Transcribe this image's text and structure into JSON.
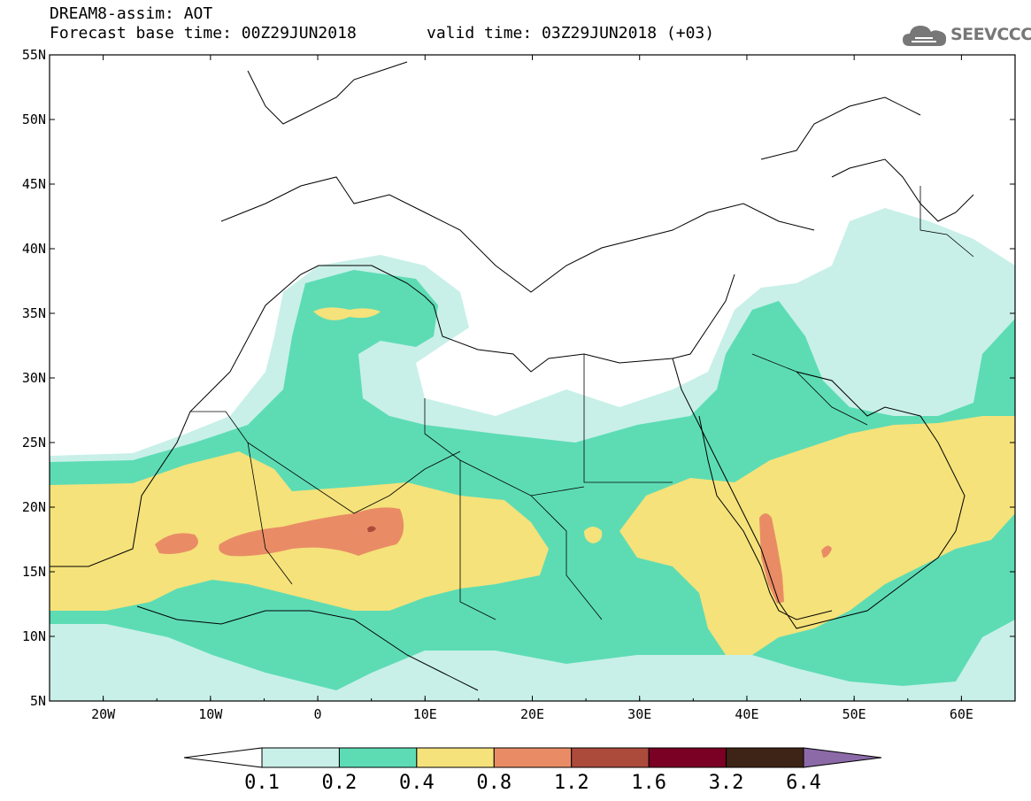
{
  "header": {
    "title": "DREAM8-assim: AOT",
    "base_time": "Forecast base time: 00Z29JUN2018",
    "valid_time": "valid time: 03Z29JUN2018 (+03)"
  },
  "logo": {
    "text": "SEEVCCC",
    "icon": "cloud-icon"
  },
  "map": {
    "lon_range": [
      -25,
      65
    ],
    "lat_range": [
      5,
      55
    ],
    "lat_labels": [
      "55N",
      "50N",
      "45N",
      "40N",
      "35N",
      "30N",
      "25N",
      "20N",
      "15N",
      "10N",
      "5N"
    ],
    "lon_labels": [
      "20W",
      "10W",
      "0",
      "10E",
      "20E",
      "30E",
      "40E",
      "50E",
      "60E"
    ],
    "variable": "Aerosol optical thickness"
  },
  "colorbar": {
    "ticks": [
      "0.1",
      "0.2",
      "0.4",
      "0.8",
      "1.2",
      "1.6",
      "3.2",
      "6.4"
    ],
    "colors": [
      "#c8f0e8",
      "#5ddcb4",
      "#f5e27a",
      "#e98c66",
      "#ac4a3c",
      "#7a0024",
      "#3e2416",
      "#8c6aa8"
    ],
    "under_color": "#ffffff"
  }
}
